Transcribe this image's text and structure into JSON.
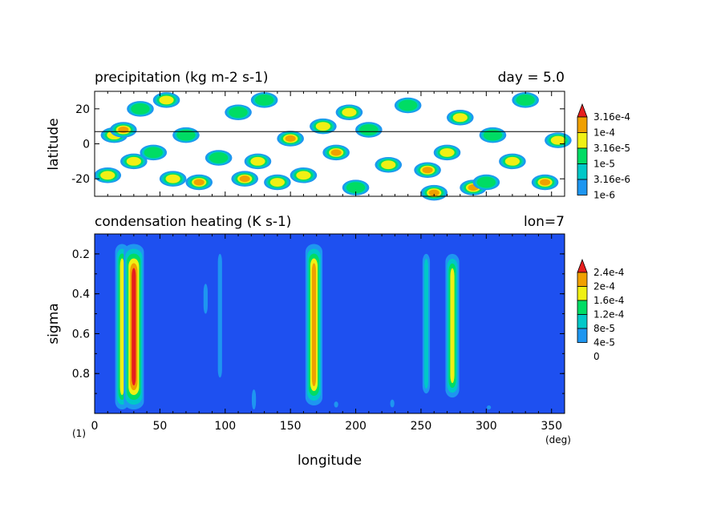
{
  "chart_data": [
    {
      "type": "heatmap",
      "title": "precipitation (kg m-2 s-1)",
      "title_right": "day = 5.0",
      "ylabel": "latitude",
      "xlim": [
        0,
        360
      ],
      "ylim": [
        -30,
        30
      ],
      "yticks": [
        "20",
        "0",
        "-20"
      ],
      "reference_line_lat": 7,
      "levels": [
        "1e-6",
        "3.16e-6",
        "1e-5",
        "3.16e-5",
        "1e-4",
        "3.16e-4"
      ],
      "colors": [
        "#ffffff",
        "#1e96f0",
        "#00c8c8",
        "#00dc64",
        "#f0f014",
        "#f0a000",
        "#e61e1e"
      ],
      "colorbar_extend": "max",
      "cells": [
        [
          15,
          5,
          4
        ],
        [
          22,
          8,
          5
        ],
        [
          10,
          -18,
          4
        ],
        [
          30,
          -10,
          4
        ],
        [
          45,
          -5,
          3
        ],
        [
          60,
          -20,
          4
        ],
        [
          70,
          5,
          3
        ],
        [
          80,
          -22,
          5
        ],
        [
          95,
          -8,
          3
        ],
        [
          110,
          18,
          3
        ],
        [
          115,
          -20,
          5
        ],
        [
          125,
          -10,
          4
        ],
        [
          140,
          -22,
          4
        ],
        [
          150,
          3,
          5
        ],
        [
          160,
          -18,
          4
        ],
        [
          175,
          10,
          4
        ],
        [
          185,
          -5,
          5
        ],
        [
          200,
          -25,
          3
        ],
        [
          210,
          8,
          3
        ],
        [
          225,
          -12,
          4
        ],
        [
          240,
          22,
          3
        ],
        [
          255,
          -15,
          5
        ],
        [
          270,
          -5,
          4
        ],
        [
          280,
          15,
          4
        ],
        [
          290,
          -25,
          5
        ],
        [
          305,
          5,
          3
        ],
        [
          320,
          -10,
          4
        ],
        [
          330,
          25,
          3
        ],
        [
          345,
          -22,
          5
        ],
        [
          355,
          2,
          4
        ],
        [
          35,
          20,
          3
        ],
        [
          55,
          25,
          4
        ],
        [
          130,
          25,
          3
        ],
        [
          195,
          18,
          4
        ],
        [
          260,
          -28,
          5
        ],
        [
          300,
          -22,
          3
        ]
      ]
    },
    {
      "type": "heatmap",
      "title": "condensation heating (K s-1)",
      "title_right": "lon=7",
      "xlabel": "longitude",
      "ylabel": "sigma",
      "x_unit": "(deg)",
      "panel_label": "(1)",
      "xlim": [
        0,
        360
      ],
      "ylim": [
        1.0,
        0.1
      ],
      "xticks": [
        "0",
        "50",
        "100",
        "150",
        "200",
        "250",
        "300",
        "350"
      ],
      "yticks": [
        "0.2",
        "0.4",
        "0.6",
        "0.8"
      ],
      "levels": [
        "0",
        "4e-5",
        "8e-5",
        "1.2e-4",
        "1.6e-4",
        "2e-4",
        "2.4e-4"
      ],
      "colors": [
        "#1e50f0",
        "#1e96f0",
        "#00c8c8",
        "#00dc64",
        "#f0f014",
        "#f0a000",
        "#e61e1e"
      ],
      "colorbar_extend": "max",
      "columns": [
        {
          "lon": 21,
          "sigma_top": 0.15,
          "sigma_bottom": 0.98,
          "level": 4
        },
        {
          "lon": 30,
          "sigma_top": 0.15,
          "sigma_bottom": 0.98,
          "level": 6
        },
        {
          "lon": 85,
          "sigma_top": 0.35,
          "sigma_bottom": 0.5,
          "level": 1
        },
        {
          "lon": 96,
          "sigma_top": 0.2,
          "sigma_bottom": 0.82,
          "level": 1
        },
        {
          "lon": 122,
          "sigma_top": 0.88,
          "sigma_bottom": 0.98,
          "level": 1
        },
        {
          "lon": 168,
          "sigma_top": 0.15,
          "sigma_bottom": 0.96,
          "level": 5
        },
        {
          "lon": 185,
          "sigma_top": 0.94,
          "sigma_bottom": 0.97,
          "level": 1
        },
        {
          "lon": 228,
          "sigma_top": 0.93,
          "sigma_bottom": 0.97,
          "level": 1
        },
        {
          "lon": 254,
          "sigma_top": 0.2,
          "sigma_bottom": 0.9,
          "level": 2
        },
        {
          "lon": 274,
          "sigma_top": 0.2,
          "sigma_bottom": 0.92,
          "level": 4
        },
        {
          "lon": 302,
          "sigma_top": 0.96,
          "sigma_bottom": 0.98,
          "level": 1
        }
      ]
    }
  ]
}
